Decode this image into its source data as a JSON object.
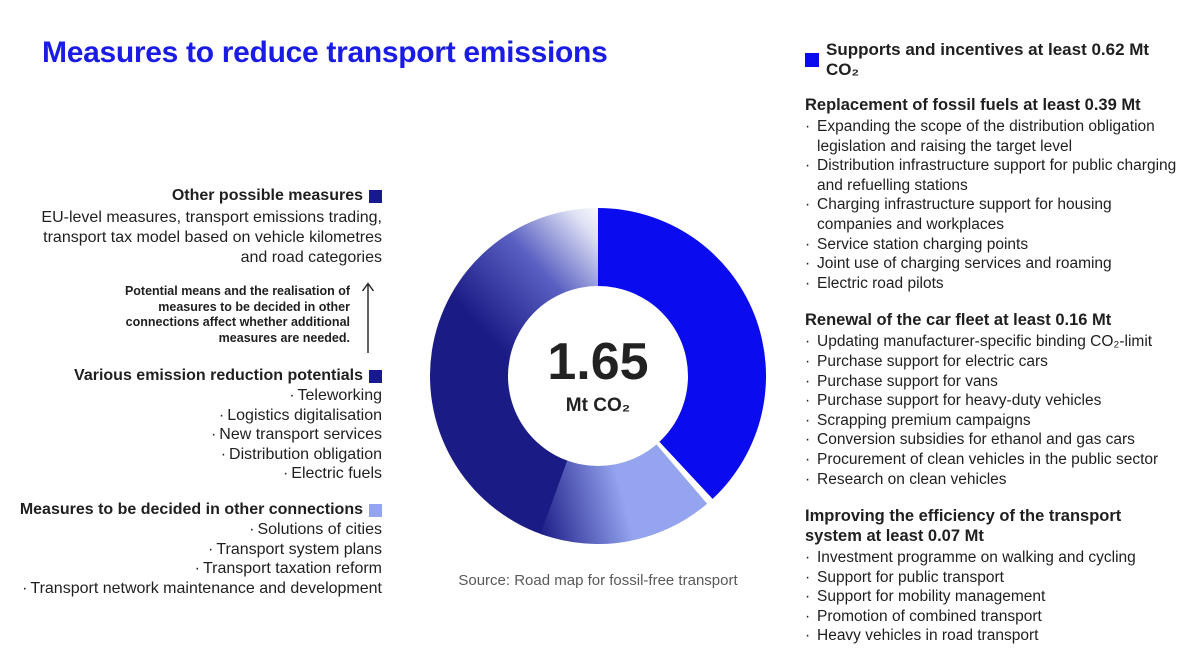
{
  "page": {
    "title": "Measures to reduce transport emissions",
    "source": "Source: Road map for fossil-free transport"
  },
  "colors": {
    "title_blue": "#1b1be6",
    "bright_blue": "#0b0bf0",
    "navy": "#19198f",
    "light_blue": "#94a4ef",
    "source_gray": "#595959",
    "text": "#1f1f1f"
  },
  "left": {
    "other_measures": {
      "heading": "Other possible measures",
      "body": "EU-level measures, transport emissions trading, transport tax model based on vehicle kilometres and road categories"
    },
    "note": "Potential means and the realisation of measures to be decided in other connections affect whether additional measures are needed.",
    "various_potentials": {
      "heading": "Various emission reduction potentials",
      "items": [
        "Teleworking",
        "Logistics digitalisation",
        "New transport services",
        "Distribution obligation",
        "Electric fuels"
      ]
    },
    "decided_other": {
      "heading": "Measures to be decided in other connections",
      "items": [
        "Solutions of cities",
        "Transport system plans",
        "Transport taxation reform",
        "Transport network maintenance and development"
      ]
    }
  },
  "right": {
    "header": "Supports and incentives at least 0.62 Mt CO₂",
    "sections": [
      {
        "heading": "Replacement of fossil fuels at least 0.39 Mt",
        "items": [
          "Expanding the scope of the distribution obligation legislation and raising the target level",
          "Distribution infrastructure support for public charging and refuelling stations",
          "Charging infrastructure support for housing companies and workplaces",
          "Service station charging points",
          "Joint use of charging services and roaming",
          "Electric road pilots"
        ]
      },
      {
        "heading": "Renewal of the car fleet at least 0.16 Mt",
        "items": [
          "Updating manufacturer-specific binding CO₂-limit",
          "Purchase support for electric cars",
          "Purchase support for vans",
          "Purchase support for heavy-duty vehicles",
          "Scrapping premium campaigns",
          "Conversion subsidies for ethanol and gas cars",
          "Procurement of clean vehicles in the public sector",
          "Research on clean vehicles"
        ]
      },
      {
        "heading": "Improving the efficiency of the transport system at least 0.07 Mt",
        "items": [
          "Investment programme on walking and cycling",
          "Support for public transport",
          "Support for mobility management",
          "Promotion of combined transport",
          "Heavy vehicles in road transport"
        ]
      }
    ]
  },
  "chart_data": {
    "type": "pie",
    "subtype": "donut",
    "center": {
      "value": "1.65",
      "unit": "Mt CO₂"
    },
    "total_mt_co2": 1.65,
    "known_values_mt": {
      "supports_and_incentives_total": 0.62,
      "replacement_of_fossil_fuels": 0.39,
      "renewal_of_car_fleet": 0.16,
      "improving_transport_system_efficiency": 0.07
    },
    "segments": [
      {
        "label": "Various emission reduction potentials / Other possible measures (fades to white = uncertain potential)",
        "start_deg": 197,
        "end_deg": 360,
        "fill": "gradFade"
      },
      {
        "label": "Measures to be decided in other connections",
        "start_deg": 139.5,
        "end_deg": 200,
        "fill": "gradLight"
      },
      {
        "label": "Supports and incentives at least 0.62 Mt CO₂",
        "start_deg": 0,
        "end_deg": 137,
        "fill": "bright_blue",
        "value_mt": 0.62
      }
    ],
    "legend_position": "left-and-right-text-columns",
    "annotations": [
      "1.65",
      "Mt CO₂",
      "Source: Road map for fossil-free transport"
    ]
  }
}
